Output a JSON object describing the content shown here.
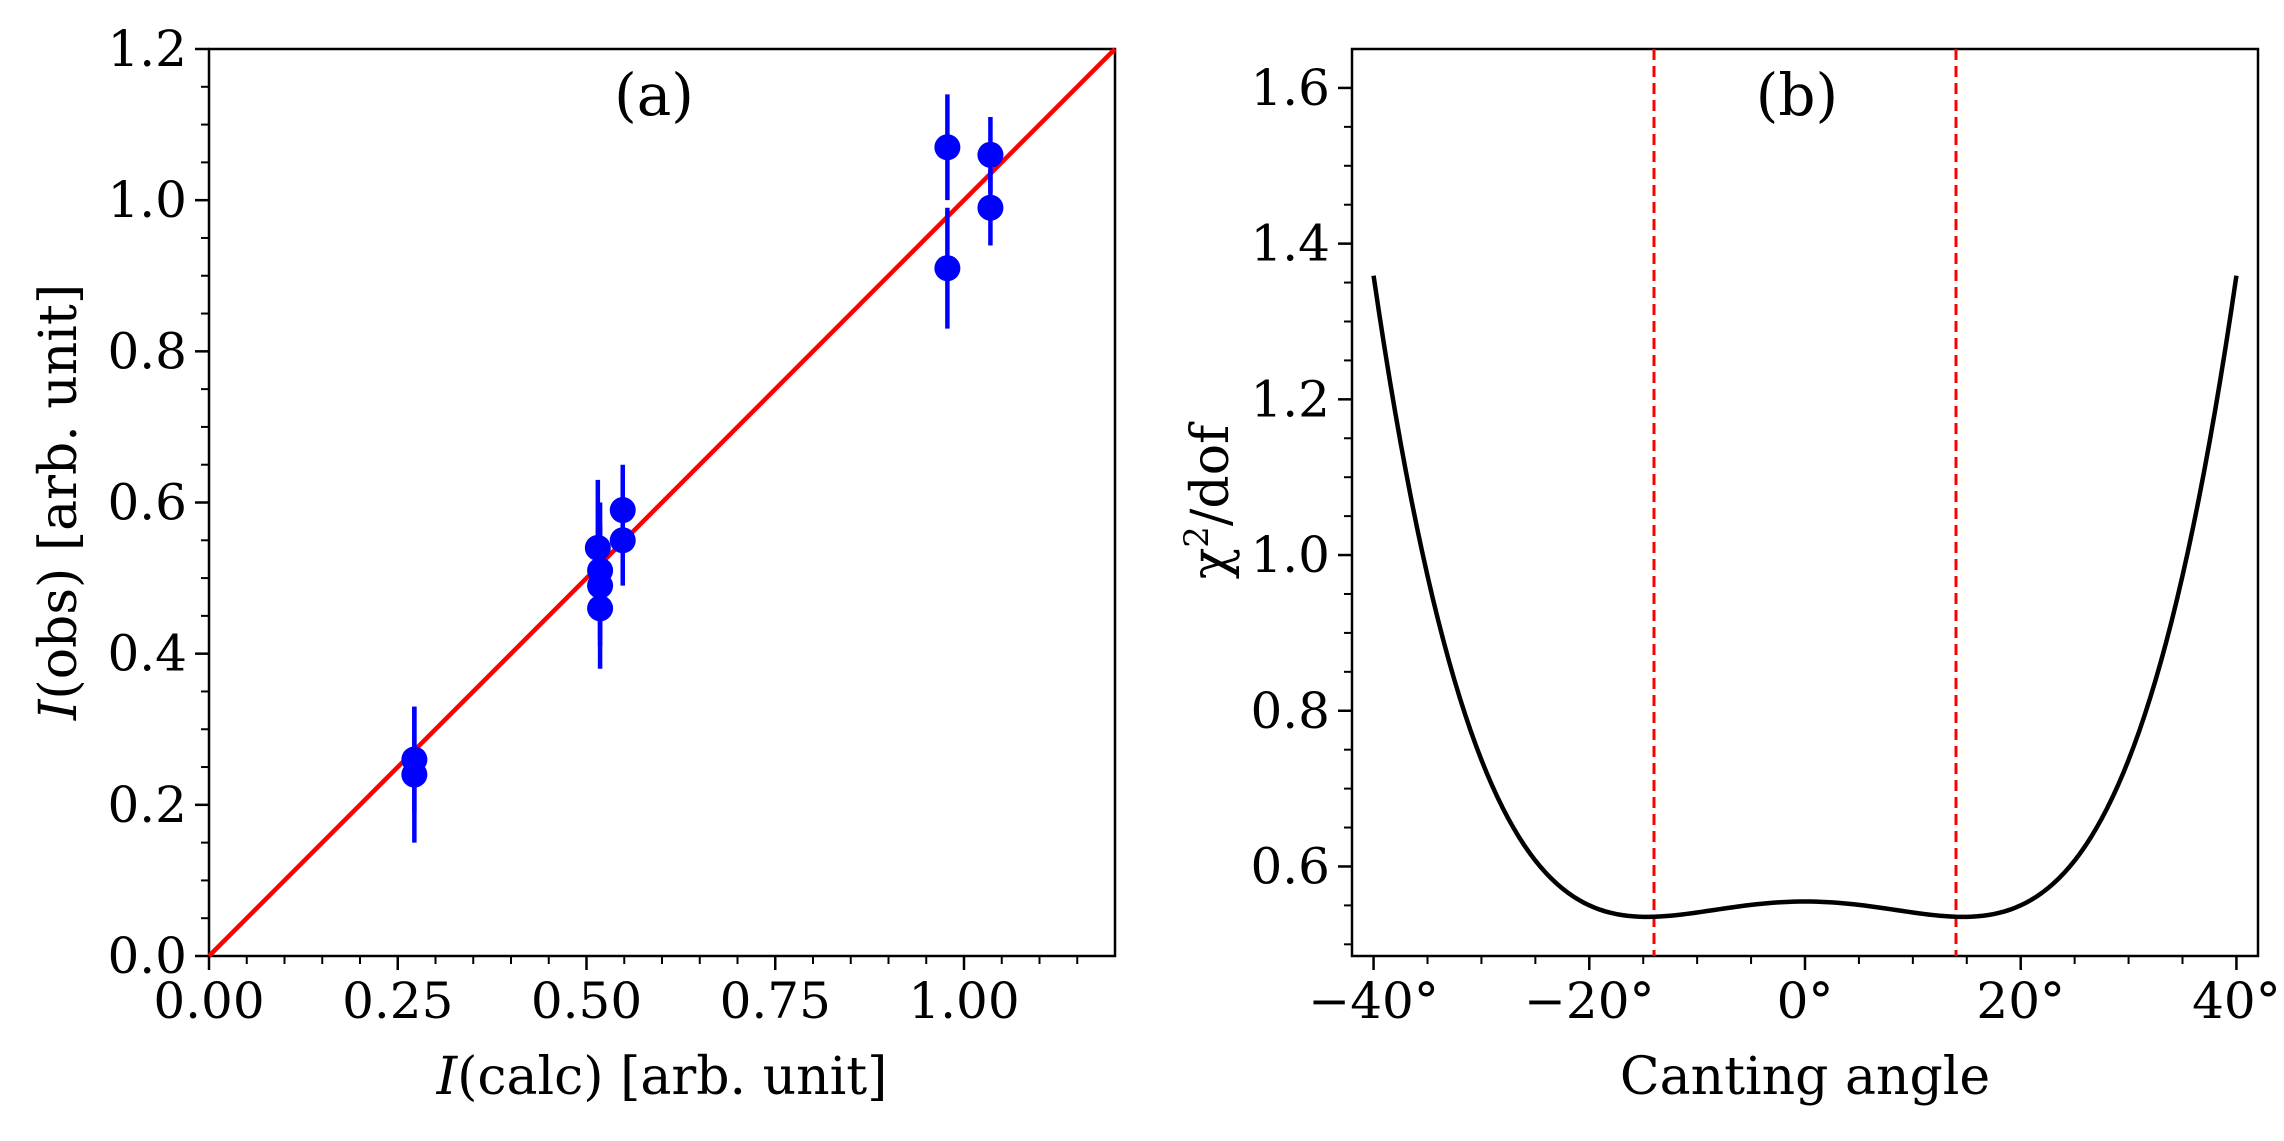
{
  "chart_data": [
    {
      "panel": "a",
      "type": "scatter",
      "panel_label": "(a)",
      "xlabel": {
        "italic": "I",
        "rest": "(calc) [arb. unit]"
      },
      "ylabel": {
        "italic": "I",
        "rest": "(obs) [arb. unit]"
      },
      "xlim": [
        0,
        1.2
      ],
      "ylim": [
        0,
        1.2
      ],
      "xticks": [
        {
          "value": 0.0,
          "label": "0.00"
        },
        {
          "value": 0.25,
          "label": "0.25"
        },
        {
          "value": 0.5,
          "label": "0.50"
        },
        {
          "value": 0.75,
          "label": "0.75"
        },
        {
          "value": 1.0,
          "label": "1.00"
        }
      ],
      "yticks": [
        {
          "value": 0.0,
          "label": "0.0"
        },
        {
          "value": 0.2,
          "label": "0.2"
        },
        {
          "value": 0.4,
          "label": "0.4"
        },
        {
          "value": 0.6,
          "label": "0.6"
        },
        {
          "value": 0.8,
          "label": "0.8"
        },
        {
          "value": 1.0,
          "label": "1.0"
        },
        {
          "value": 1.2,
          "label": "1.2"
        }
      ],
      "points_color": "#0000ff",
      "line_color": "#ff0000",
      "reference_line": {
        "from": [
          0,
          0
        ],
        "to": [
          1.2,
          1.2
        ]
      },
      "points": [
        {
          "x": 0.272,
          "y": 0.26,
          "err": 0.07
        },
        {
          "x": 0.272,
          "y": 0.24,
          "err": 0.09
        },
        {
          "x": 0.515,
          "y": 0.54,
          "err": 0.09
        },
        {
          "x": 0.518,
          "y": 0.51,
          "err": 0.09
        },
        {
          "x": 0.518,
          "y": 0.49,
          "err": 0.08
        },
        {
          "x": 0.518,
          "y": 0.46,
          "err": 0.08
        },
        {
          "x": 0.548,
          "y": 0.59,
          "err": 0.06
        },
        {
          "x": 0.548,
          "y": 0.55,
          "err": 0.06
        },
        {
          "x": 0.978,
          "y": 1.07,
          "err": 0.07
        },
        {
          "x": 0.978,
          "y": 0.91,
          "err": 0.08
        },
        {
          "x": 1.035,
          "y": 1.06,
          "err": 0.05
        },
        {
          "x": 1.035,
          "y": 0.99,
          "err": 0.05
        }
      ]
    },
    {
      "panel": "b",
      "type": "line",
      "panel_label": "(b)",
      "xlabel": "Canting angle",
      "ylabel": {
        "chi": "χ",
        "sup": "2",
        "rest": "/dof"
      },
      "xlim": [
        -42,
        42
      ],
      "ylim": [
        0.485,
        1.65
      ],
      "xticks": [
        {
          "value": -40,
          "label": "−40°"
        },
        {
          "value": -20,
          "label": "−20°"
        },
        {
          "value": 0,
          "label": "0°"
        },
        {
          "value": 20,
          "label": "20°"
        },
        {
          "value": 40,
          "label": "40°"
        }
      ],
      "yticks": [
        {
          "value": 0.6,
          "label": "0.6"
        },
        {
          "value": 0.8,
          "label": "0.8"
        },
        {
          "value": 1.0,
          "label": "1.0"
        },
        {
          "value": 1.2,
          "label": "1.2"
        },
        {
          "value": 1.4,
          "label": "1.4"
        },
        {
          "value": 1.6,
          "label": "1.6"
        }
      ],
      "line_color": "#000000",
      "vline_color": "#ff0000",
      "vlines": [
        -14,
        14
      ],
      "curve": {
        "model": "quartic",
        "c0": 0.555,
        "c2": -0.000184,
        "c4": 4.29e-07,
        "x_range": [
          -40,
          40
        ]
      }
    }
  ]
}
